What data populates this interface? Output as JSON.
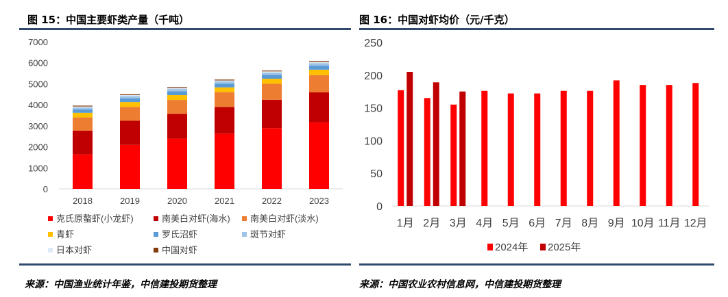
{
  "left": {
    "title": "图 15：中国主要虾类产量（千吨）",
    "source": "来源：中国渔业统计年鉴，中信建投期货整理",
    "legend_rows": [
      [
        0,
        1,
        2
      ],
      [
        3,
        4,
        5
      ],
      [
        6,
        7
      ]
    ]
  },
  "right": {
    "title": "图 16：中国对虾均价（元/千克）",
    "source": "来源：中国农业农村信息网，中信建投期货整理"
  },
  "chart_data": [
    {
      "type": "bar",
      "stacked": true,
      "categories": [
        "2018",
        "2019",
        "2020",
        "2021",
        "2022",
        "2023"
      ],
      "ylim": [
        0,
        7000
      ],
      "yticks": [
        "0",
        "1000",
        "2000",
        "3000",
        "4000",
        "5000",
        "6000",
        "7000"
      ],
      "series": [
        {
          "name": "克氏原螯虾(小龙虾)",
          "color": "#ff0000",
          "values": [
            1640,
            2090,
            2390,
            2630,
            2890,
            3160
          ]
        },
        {
          "name": "南美白对虾(海水)",
          "color": "#c00000",
          "values": [
            1130,
            1150,
            1180,
            1270,
            1350,
            1430
          ]
        },
        {
          "name": "南美白对虾(淡水)",
          "color": "#ed7d31",
          "values": [
            630,
            660,
            660,
            700,
            760,
            820
          ]
        },
        {
          "name": "青虾",
          "color": "#ffc000",
          "values": [
            220,
            230,
            230,
            230,
            240,
            260
          ]
        },
        {
          "name": "罗氏沼虾",
          "color": "#5b9bd5",
          "values": [
            160,
            180,
            180,
            170,
            180,
            190
          ]
        },
        {
          "name": "斑节对虾",
          "color": "#9dc3e6",
          "values": [
            90,
            100,
            110,
            110,
            110,
            120
          ]
        },
        {
          "name": "日本对虾",
          "color": "#deebf7",
          "values": [
            50,
            50,
            50,
            50,
            60,
            60
          ]
        },
        {
          "name": "中国对虾",
          "color": "#843c0c",
          "values": [
            40,
            40,
            40,
            40,
            40,
            40
          ]
        }
      ]
    },
    {
      "type": "bar",
      "categories": [
        "1月",
        "2月",
        "3月",
        "4月",
        "5月",
        "6月",
        "7月",
        "8月",
        "9月",
        "10月",
        "11月",
        "12月"
      ],
      "ylim": [
        0,
        250
      ],
      "yticks": [
        "0",
        "50",
        "100",
        "150",
        "200",
        "250"
      ],
      "series": [
        {
          "name": "2024年",
          "color": "#ff0000",
          "values": [
            177,
            165,
            155,
            176,
            172,
            172,
            176,
            176,
            192,
            185,
            185,
            188
          ]
        },
        {
          "name": "2025年",
          "color": "#c00000",
          "values": [
            205,
            189,
            175,
            null,
            null,
            null,
            null,
            null,
            null,
            null,
            null,
            null
          ]
        }
      ]
    }
  ]
}
